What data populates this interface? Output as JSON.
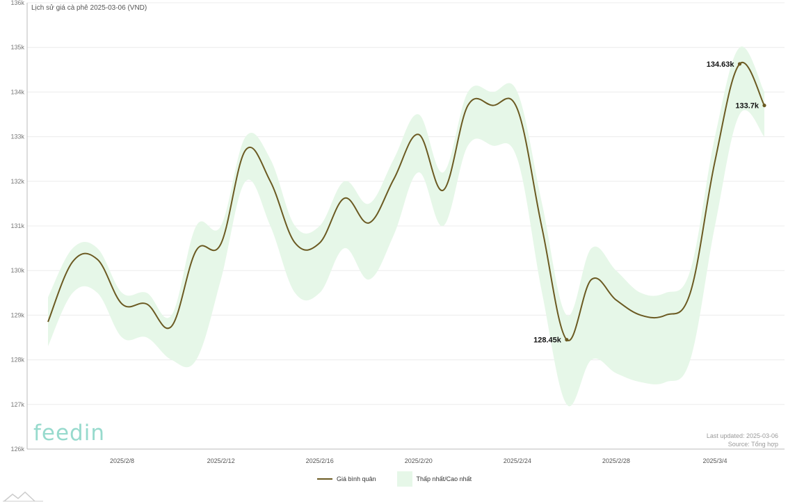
{
  "title": "Lịch sử giá cà phê 2025-03-06 (VND)",
  "last_updated": "Last updated: 2025-03-06",
  "source": "Source: Tổng hợp",
  "logo_text": "feedin",
  "legend": {
    "avg_label": "Giá bình quân",
    "range_label": "Thấp nhất/Cao nhất"
  },
  "colors": {
    "line": "#6b5a22",
    "band": "#e6f7e8",
    "grid": "#ececec",
    "axis": "#bbbbbb",
    "logo": "#86d4c5"
  },
  "chart_data": {
    "type": "line",
    "title": "Lịch sử giá cà phê 2025-03-06 (VND)",
    "xlabel": "",
    "ylabel": "",
    "ylim": [
      126000,
      136000
    ],
    "y_ticks": [
      126000,
      127000,
      128000,
      129000,
      130000,
      131000,
      132000,
      133000,
      134000,
      135000,
      136000
    ],
    "y_tick_labels": [
      "126k",
      "127k",
      "128k",
      "129k",
      "130k",
      "131k",
      "132k",
      "133k",
      "134k",
      "135k",
      "136k"
    ],
    "x_tick_labels": [
      "2025/2/8",
      "2025/2/12",
      "2025/2/16",
      "2025/2/20",
      "2025/2/24",
      "2025/2/28",
      "2025/3/4"
    ],
    "x_tick_dates": [
      "2025-02-08",
      "2025-02-12",
      "2025-02-16",
      "2025-02-20",
      "2025-02-24",
      "2025-02-28",
      "2025-03-04"
    ],
    "grid": true,
    "legend_position": "bottom",
    "x": [
      "2025-02-05",
      "2025-02-06",
      "2025-02-07",
      "2025-02-08",
      "2025-02-09",
      "2025-02-10",
      "2025-02-11",
      "2025-02-12",
      "2025-02-13",
      "2025-02-14",
      "2025-02-15",
      "2025-02-16",
      "2025-02-17",
      "2025-02-18",
      "2025-02-19",
      "2025-02-20",
      "2025-02-21",
      "2025-02-22",
      "2025-02-23",
      "2025-02-24",
      "2025-02-25",
      "2025-02-26",
      "2025-02-27",
      "2025-02-28",
      "2025-03-01",
      "2025-03-02",
      "2025-03-03",
      "2025-03-04",
      "2025-03-05",
      "2025-03-06"
    ],
    "series": [
      {
        "name": "Giá bình quân",
        "values": [
          128850,
          130200,
          130250,
          129250,
          129250,
          128750,
          130450,
          130600,
          132700,
          132000,
          130620,
          130620,
          131620,
          131070,
          132050,
          133050,
          131800,
          133700,
          133700,
          133620,
          130950,
          128450,
          129800,
          129340,
          129000,
          129000,
          129500,
          132450,
          134630,
          133700
        ]
      },
      {
        "name": "Thấp nhất/Cao nhất",
        "low": [
          128300,
          129500,
          129500,
          128500,
          128500,
          128000,
          128000,
          129800,
          132000,
          131000,
          129500,
          129500,
          130500,
          129800,
          130800,
          132200,
          131000,
          132800,
          132800,
          132500,
          129500,
          127000,
          128000,
          127700,
          127500,
          127500,
          128000,
          131000,
          133500,
          133000
        ],
        "high": [
          129400,
          130500,
          130500,
          129500,
          129500,
          129000,
          131000,
          131000,
          133000,
          132500,
          131000,
          131000,
          132000,
          131500,
          132500,
          133500,
          132200,
          134000,
          134000,
          134000,
          131500,
          129000,
          130500,
          130000,
          129500,
          129500,
          130000,
          133000,
          135000,
          134000
        ]
      }
    ],
    "annotations": [
      {
        "date": "2025-02-26",
        "value": 128450,
        "label": "128.45k"
      },
      {
        "date": "2025-03-05",
        "value": 134630,
        "label": "134.63k"
      },
      {
        "date": "2025-03-06",
        "value": 133700,
        "label": "133.7k"
      }
    ]
  }
}
